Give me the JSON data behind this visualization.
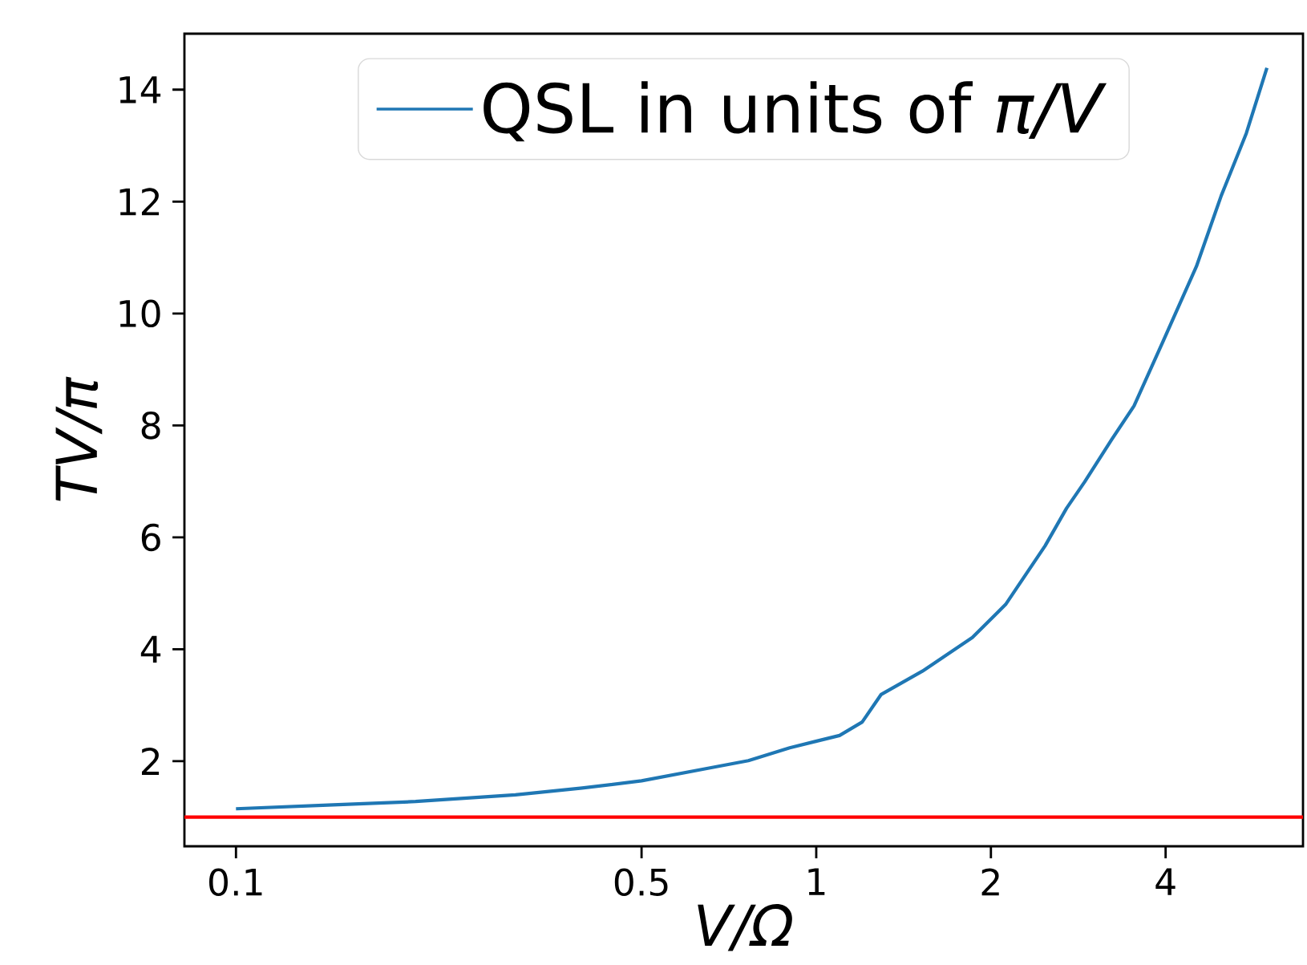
{
  "chart_data": {
    "type": "line",
    "xlabel": "*V/Ω*",
    "ylabel": "*TV/π*",
    "log": "x",
    "xlim": [
      0.0815,
      6.9
    ],
    "ylim": [
      0.48,
      15.0
    ],
    "xticks": [
      0.1,
      0.5,
      1,
      2,
      4
    ],
    "yticks": [
      2,
      4,
      6,
      8,
      10,
      12,
      14
    ],
    "legend": "top",
    "grid": false,
    "series": [
      {
        "name": "QSL in units of *π/V*",
        "color": "#1f77b4",
        "x": [
          0.1,
          0.147,
          0.204,
          0.303,
          0.395,
          0.5,
          0.648,
          0.764,
          0.9,
          1.097,
          1.2,
          1.293,
          1.524,
          1.858,
          2.12,
          2.48,
          2.7,
          2.9,
          3.23,
          3.53,
          3.96,
          4.52,
          4.99,
          5.51,
          5.98
        ],
        "values": [
          1.15,
          1.22,
          1.28,
          1.4,
          1.52,
          1.65,
          1.87,
          2.01,
          2.24,
          2.46,
          2.7,
          3.19,
          3.61,
          4.21,
          4.8,
          5.85,
          6.52,
          6.99,
          7.75,
          8.35,
          9.5,
          10.84,
          12.11,
          13.22,
          14.39
        ]
      }
    ],
    "ref_lines": [
      {
        "axis": "y",
        "value": 1,
        "color": "#ff0000"
      }
    ]
  }
}
